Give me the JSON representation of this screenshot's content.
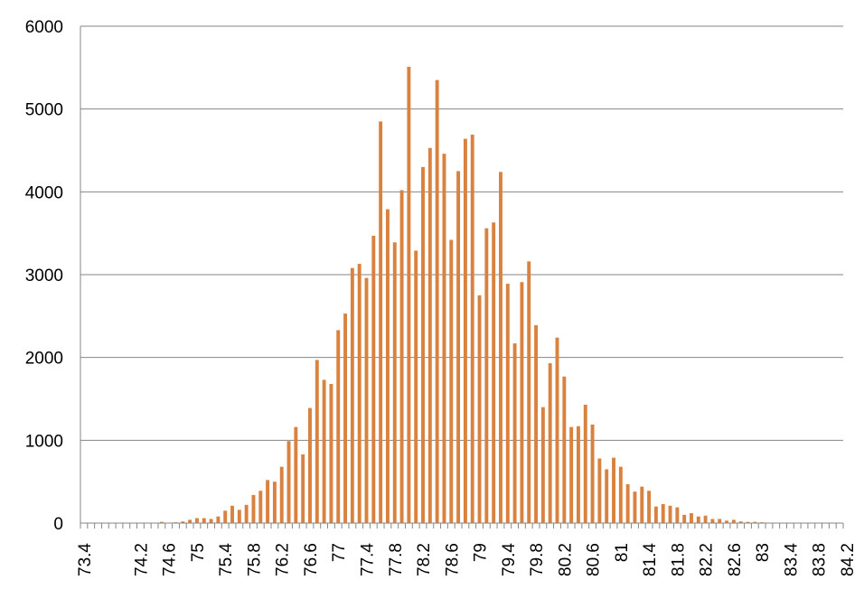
{
  "chart_data": {
    "type": "bar",
    "title": "",
    "xlabel": "",
    "ylabel": "",
    "ylim": [
      0,
      6000
    ],
    "yticks": [
      0,
      1000,
      2000,
      3000,
      4000,
      5000,
      6000
    ],
    "grid": true,
    "legend": "none",
    "bar_color": "#D9813F",
    "grid_color": "#868686",
    "x_tick_labels": [
      "73.4",
      "74.2",
      "74.6",
      "75",
      "75.4",
      "75.8",
      "76.2",
      "76.6",
      "77",
      "77.4",
      "77.8",
      "78.2",
      "78.6",
      "79",
      "79.4",
      "79.8",
      "80.2",
      "80.6",
      "81",
      "81.4",
      "81.8",
      "82.2",
      "82.6",
      "83",
      "83.4",
      "83.8",
      "84.2"
    ],
    "x_start": 73.4,
    "x_step": 0.1,
    "values": [
      0,
      0,
      0,
      0,
      0,
      0,
      0,
      0,
      0,
      0,
      0,
      15,
      0,
      10,
      20,
      40,
      60,
      60,
      50,
      80,
      150,
      210,
      160,
      220,
      340,
      390,
      520,
      500,
      680,
      990,
      1160,
      830,
      1390,
      1970,
      1730,
      1680,
      2330,
      2530,
      3080,
      3130,
      2960,
      3470,
      4850,
      3790,
      3390,
      4020,
      5510,
      3290,
      4300,
      4530,
      5350,
      4460,
      3420,
      4250,
      4640,
      4690,
      2750,
      3560,
      3630,
      4240,
      2890,
      2170,
      2910,
      3160,
      2390,
      1400,
      1930,
      2240,
      1770,
      1160,
      1170,
      1430,
      1190,
      780,
      650,
      790,
      680,
      470,
      380,
      440,
      390,
      200,
      230,
      210,
      190,
      100,
      120,
      80,
      90,
      50,
      50,
      30,
      40,
      20,
      15,
      15,
      10,
      5,
      5,
      0,
      0,
      0,
      0,
      0,
      0,
      0,
      0,
      0
    ]
  }
}
